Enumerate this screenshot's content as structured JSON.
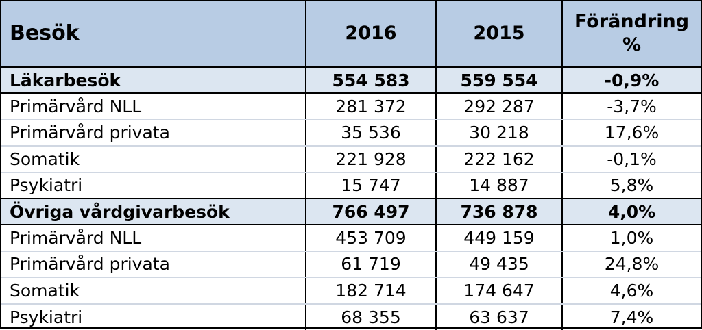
{
  "chart_data": {
    "type": "table",
    "columns": [
      "Besök",
      "2016",
      "2015",
      "Förändring %"
    ],
    "header": {
      "label": "Besök",
      "year1": "2016",
      "year2": "2015",
      "change_line1": "Förändring",
      "change_line2": "%"
    },
    "rows": [
      {
        "label": "Läkarbesök",
        "v2016": "554 583",
        "v2015": "559 554",
        "change": "-0,9%",
        "group": true
      },
      {
        "label": "Primärvård NLL",
        "v2016": "281 372",
        "v2015": "292 287",
        "change": "-3,7%",
        "group": false
      },
      {
        "label": "Primärvård privata",
        "v2016": "35 536",
        "v2015": "30 218",
        "change": "17,6%",
        "group": false
      },
      {
        "label": "Somatik",
        "v2016": "221 928",
        "v2015": "222 162",
        "change": "-0,1%",
        "group": false
      },
      {
        "label": "Psykiatri",
        "v2016": "15 747",
        "v2015": "14 887",
        "change": "5,8%",
        "group": false
      },
      {
        "label": "Övriga vårdgivarbesök",
        "v2016": "766 497",
        "v2015": "736 878",
        "change": "4,0%",
        "group": true
      },
      {
        "label": "Primärvård NLL",
        "v2016": "453 709",
        "v2015": "449 159",
        "change": "1,0%",
        "group": false
      },
      {
        "label": "Primärvård privata",
        "v2016": "61 719",
        "v2015": "49 435",
        "change": "24,8%",
        "group": false
      },
      {
        "label": "Somatik",
        "v2016": "182 714",
        "v2015": "174 647",
        "change": "4,6%",
        "group": false
      },
      {
        "label": "Psykiatri",
        "v2016": "68 355",
        "v2015": "63 637",
        "change": "7,4%",
        "group": false
      }
    ],
    "colors": {
      "header_bg": "#b8cce4",
      "group_bg": "#dce6f1",
      "row_bg": "#ffffff",
      "border": "#000000",
      "row_divider": "#d0d7e2"
    }
  }
}
